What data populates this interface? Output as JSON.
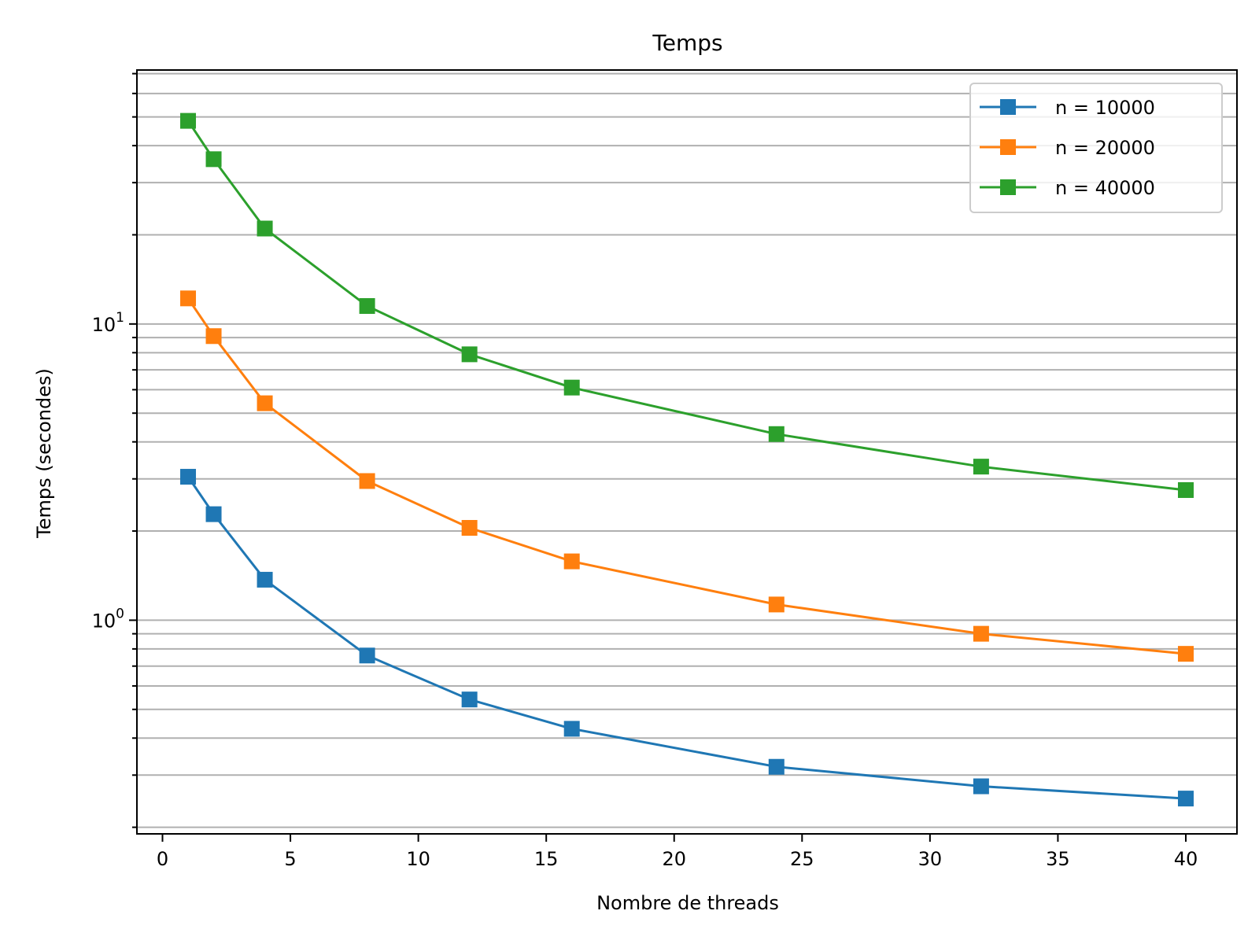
{
  "chart_data": {
    "type": "line",
    "title": "Temps",
    "xlabel": "Nombre de threads",
    "ylabel": "Temps (secondes)",
    "xlim": [
      -1,
      42
    ],
    "ylim": [
      0.19,
      72
    ],
    "yscale": "log",
    "grid": {
      "y_major": true,
      "y_minor": true,
      "x": false
    },
    "legend_position": "top-right",
    "x_ticks": [
      0,
      5,
      10,
      15,
      20,
      25,
      30,
      35,
      40
    ],
    "y_major_ticks": [
      {
        "value": 1,
        "base": "10",
        "exp": "0"
      },
      {
        "value": 10,
        "base": "10",
        "exp": "1"
      }
    ],
    "x": [
      1,
      2,
      4,
      8,
      12,
      16,
      24,
      32,
      40
    ],
    "series": [
      {
        "name": "n = 10000",
        "color": "#1f77b4",
        "marker": "square",
        "values": [
          3.05,
          2.28,
          1.37,
          0.76,
          0.54,
          0.43,
          0.32,
          0.275,
          0.25
        ]
      },
      {
        "name": "n = 20000",
        "color": "#ff7f0e",
        "marker": "square",
        "values": [
          12.2,
          9.1,
          5.4,
          2.95,
          2.05,
          1.58,
          1.13,
          0.9,
          0.77
        ]
      },
      {
        "name": "n = 40000",
        "color": "#2ca02c",
        "marker": "square",
        "values": [
          48.5,
          36.0,
          21.0,
          11.5,
          7.9,
          6.1,
          4.25,
          3.3,
          2.75
        ]
      }
    ]
  }
}
